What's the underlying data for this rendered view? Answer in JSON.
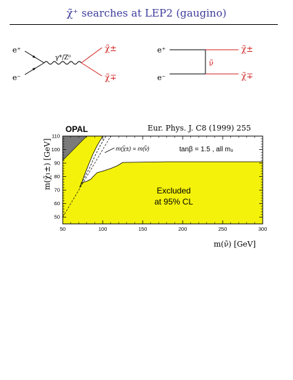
{
  "header": {
    "title": "χ̃⁺ searches at LEP2 (gaugino)"
  },
  "diagram_left": {
    "in_top": "e⁺",
    "in_bottom": "e⁻",
    "propagator": "γ*/Z⁰",
    "out_top": "χ̃±",
    "out_bottom": "χ̃∓"
  },
  "diagram_right": {
    "in_top": "e⁺",
    "in_bottom": "e⁻",
    "exchange": "ν̃",
    "out_top": "χ̃±",
    "out_bottom": "χ̃∓"
  },
  "colors": {
    "title": "#3c3c9c",
    "chargino_lines": "#d02020",
    "excluded": "#f4f20a",
    "theory_region": "#7a7a7a"
  },
  "chart_data": {
    "type": "area",
    "experiment": "OPAL",
    "reference": "Eur. Phys. J. C8 (1999) 255",
    "xlabel": "m(ν̃) [GeV]",
    "ylabel": "m(χ̃₁±) [GeV]",
    "xlim": [
      50,
      300
    ],
    "ylim": [
      45,
      110
    ],
    "xticks": [
      50,
      100,
      150,
      200,
      250,
      300
    ],
    "yticks": [
      50,
      60,
      70,
      80,
      90,
      100,
      110
    ],
    "conditions": "tanβ = 1.5 , all m₀",
    "diagonal_label": "m(χ̃±) = m(ν̃)",
    "region_label_line1": "Excluded",
    "region_label_line2": "at 95% CL",
    "excluded_boundary": [
      [
        300,
        91
      ],
      [
        180,
        91
      ],
      [
        125,
        90.5
      ],
      [
        118,
        88
      ],
      [
        110,
        86
      ],
      [
        100,
        84
      ],
      [
        93,
        83
      ],
      [
        88,
        80
      ],
      [
        85,
        78
      ],
      [
        80,
        76.5
      ],
      [
        74,
        75.5
      ],
      [
        71,
        72
      ],
      [
        73,
        74
      ],
      [
        77,
        81
      ],
      [
        83,
        90
      ],
      [
        88,
        97
      ],
      [
        93,
        103
      ],
      [
        96,
        106
      ],
      [
        98,
        108
      ],
      [
        100,
        110
      ]
    ],
    "theory_forbidden": [
      [
        50,
        110
      ],
      [
        50,
        92
      ],
      [
        80,
        110
      ]
    ],
    "diagonal_line": [
      [
        50,
        50
      ],
      [
        110,
        110
      ]
    ],
    "dashed_curve": [
      [
        104,
        110
      ],
      [
        96,
        102
      ],
      [
        90,
        95
      ],
      [
        84,
        87
      ],
      [
        77,
        79
      ],
      [
        72,
        74
      ]
    ],
    "grid": false
  }
}
